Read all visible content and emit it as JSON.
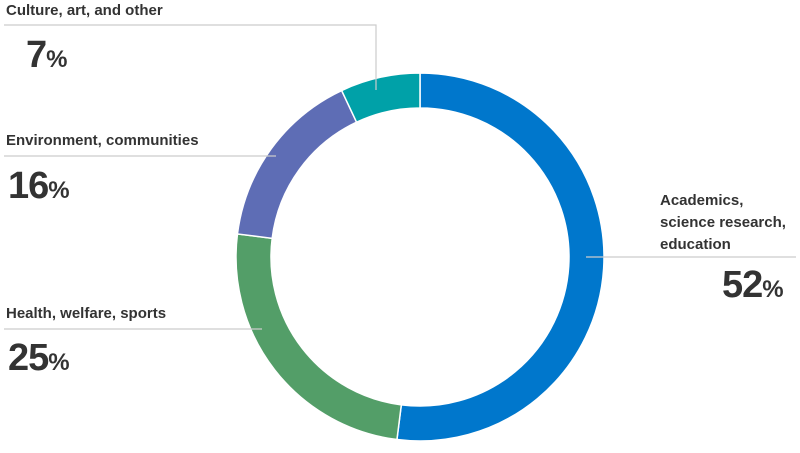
{
  "chart_data": {
    "type": "pie",
    "donut": true,
    "categories": [
      "Academics, science research, education",
      "Health, welfare, sports",
      "Environment, communities",
      "Culture, art, and other"
    ],
    "values": [
      52,
      25,
      16,
      7
    ],
    "value_suffix": "%",
    "colors": [
      "#0077cc",
      "#539e68",
      "#5e6db5",
      "#00a1a8"
    ],
    "legend": "none"
  },
  "labels": {
    "academics": {
      "line1": "Academics,",
      "line2": "science research,",
      "line3": "education",
      "value": "52",
      "unit": "%"
    },
    "health": {
      "text": "Health, welfare, sports",
      "value": "25",
      "unit": "%"
    },
    "environment": {
      "text": "Environment, communities",
      "value": "16",
      "unit": "%"
    },
    "culture": {
      "text": "Culture, art, and other",
      "value": "7",
      "unit": "%"
    }
  }
}
